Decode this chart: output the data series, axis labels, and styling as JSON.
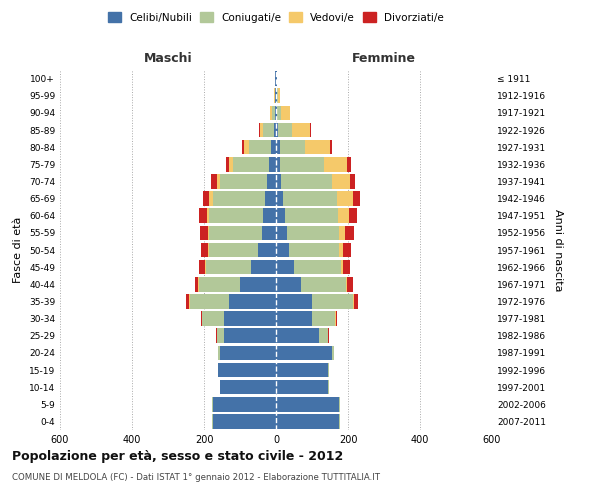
{
  "age_groups": [
    "0-4",
    "5-9",
    "10-14",
    "15-19",
    "20-24",
    "25-29",
    "30-34",
    "35-39",
    "40-44",
    "45-49",
    "50-54",
    "55-59",
    "60-64",
    "65-69",
    "70-74",
    "75-79",
    "80-84",
    "85-89",
    "90-94",
    "95-99",
    "100+"
  ],
  "birth_years": [
    "2007-2011",
    "2002-2006",
    "1997-2001",
    "1992-1996",
    "1987-1991",
    "1982-1986",
    "1977-1981",
    "1972-1976",
    "1967-1971",
    "1962-1966",
    "1957-1961",
    "1952-1956",
    "1947-1951",
    "1942-1946",
    "1937-1941",
    "1932-1936",
    "1927-1931",
    "1922-1926",
    "1917-1921",
    "1912-1916",
    "≤ 1911"
  ],
  "maschi": {
    "celibi": [
      175,
      175,
      155,
      160,
      155,
      145,
      145,
      130,
      100,
      70,
      50,
      40,
      35,
      30,
      25,
      20,
      15,
      5,
      3,
      2,
      2
    ],
    "coniugati": [
      2,
      2,
      1,
      2,
      5,
      20,
      60,
      110,
      115,
      125,
      135,
      145,
      150,
      145,
      130,
      100,
      60,
      30,
      8,
      2,
      1
    ],
    "vedovi": [
      0,
      0,
      0,
      0,
      0,
      0,
      0,
      1,
      1,
      2,
      3,
      5,
      8,
      10,
      10,
      10,
      15,
      10,
      5,
      2,
      0
    ],
    "divorziati": [
      0,
      0,
      0,
      0,
      0,
      1,
      2,
      8,
      10,
      18,
      20,
      22,
      20,
      18,
      15,
      10,
      5,
      2,
      0,
      0,
      0
    ]
  },
  "femmine": {
    "nubili": [
      175,
      175,
      145,
      145,
      155,
      120,
      100,
      100,
      70,
      50,
      35,
      30,
      25,
      20,
      15,
      12,
      10,
      5,
      3,
      2,
      2
    ],
    "coniugate": [
      2,
      2,
      1,
      2,
      5,
      25,
      65,
      115,
      125,
      130,
      140,
      145,
      148,
      150,
      140,
      120,
      70,
      40,
      10,
      3,
      1
    ],
    "vedove": [
      0,
      0,
      0,
      0,
      0,
      0,
      1,
      2,
      3,
      6,
      10,
      18,
      30,
      45,
      50,
      65,
      70,
      50,
      25,
      5,
      1
    ],
    "divorziate": [
      0,
      0,
      0,
      0,
      0,
      1,
      3,
      10,
      15,
      20,
      22,
      25,
      22,
      18,
      15,
      10,
      5,
      2,
      1,
      0,
      0
    ]
  },
  "colors": {
    "celibi": "#4472a8",
    "coniugati": "#b2c899",
    "vedovi": "#f5c96a",
    "divorziati": "#cc2222"
  },
  "legend_labels": [
    "Celibi/Nubili",
    "Coniugati/e",
    "Vedovi/e",
    "Divorziati/e"
  ],
  "title_main": "Popolazione per età, sesso e stato civile - 2012",
  "title_sub": "COMUNE DI MELDOLA (FC) - Dati ISTAT 1° gennaio 2012 - Elaborazione TUTTITALIA.IT",
  "xlabel_left": "Maschi",
  "xlabel_right": "Femmine",
  "ylabel_left": "Fasce di età",
  "ylabel_right": "Anni di nascita",
  "xlim": 600,
  "background_color": "#ffffff",
  "grid_color": "#cccccc"
}
